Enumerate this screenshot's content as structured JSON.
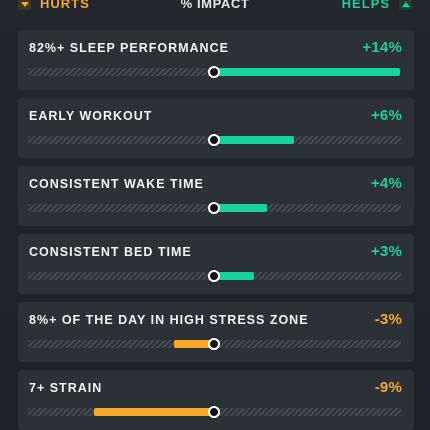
{
  "header": {
    "hurts_label": "HURTS",
    "title": "% IMPACT",
    "helps_label": "HELPS"
  },
  "colors": {
    "helps": "#17d29a",
    "hurts": "#f6a82b"
  },
  "scale_max_percent": 14,
  "items": [
    {
      "label": "82%+ SLEEP PERFORMANCE",
      "value": "+14%",
      "impact": 14
    },
    {
      "label": "EARLY WORKOUT",
      "value": "+6%",
      "impact": 6
    },
    {
      "label": "CONSISTENT WAKE TIME",
      "value": "+4%",
      "impact": 4
    },
    {
      "label": "CONSISTENT BED TIME",
      "value": "+3%",
      "impact": 3
    },
    {
      "label": "8%+ OF THE DAY IN HIGH STRESS ZONE",
      "value": "-3%",
      "impact": -3
    },
    {
      "label": "7+ STRAIN",
      "value": "-9%",
      "impact": -9
    }
  ]
}
